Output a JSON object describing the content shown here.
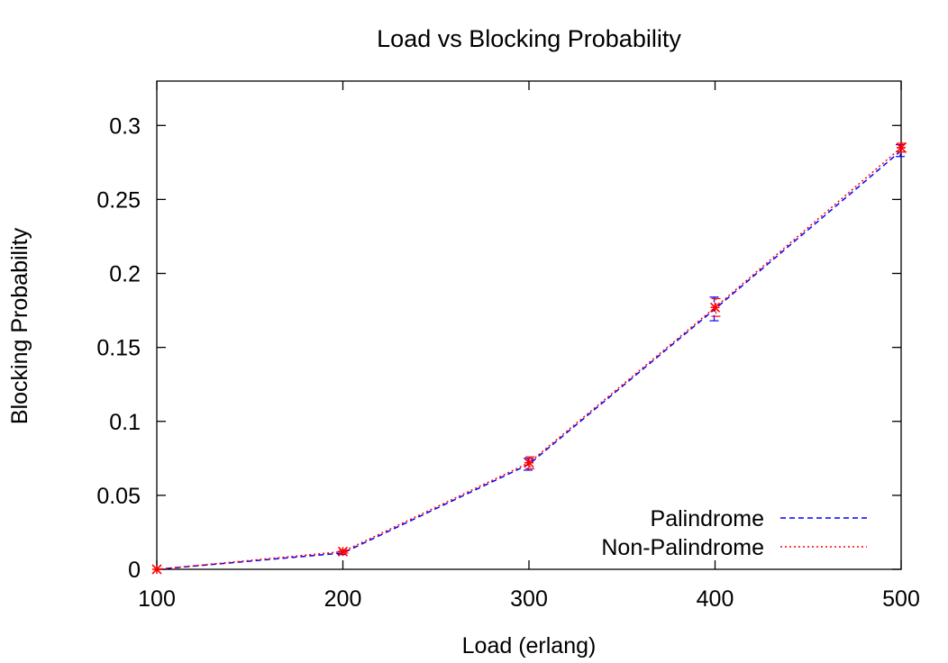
{
  "chart_data": {
    "type": "line",
    "title": "Load vs Blocking Probability",
    "xlabel": "Load (erlang)",
    "ylabel": "Blocking Probability",
    "xlim": [
      100,
      500
    ],
    "ylim": [
      0,
      0.33
    ],
    "xticks": [
      "100",
      "200",
      "300",
      "400",
      "500"
    ],
    "yticks": [
      "0",
      "0.05",
      "0.1",
      "0.15",
      "0.2",
      "0.25",
      "0.3"
    ],
    "legend_position": "bottom-right",
    "x": [
      100,
      200,
      300,
      400,
      500
    ],
    "series": [
      {
        "name": "Palindrome",
        "color": "#0000ff",
        "dash": "dashed",
        "values": [
          0.0,
          0.011,
          0.071,
          0.176,
          0.283
        ],
        "error": [
          0.0,
          0.001,
          0.004,
          0.008,
          0.004
        ]
      },
      {
        "name": "Non-Palindrome",
        "color": "#ff0000",
        "dash": "dotted",
        "values": [
          0.0,
          0.012,
          0.072,
          0.177,
          0.285
        ],
        "error": [
          0.0,
          0.001,
          0.004,
          0.006,
          0.003
        ]
      }
    ]
  }
}
